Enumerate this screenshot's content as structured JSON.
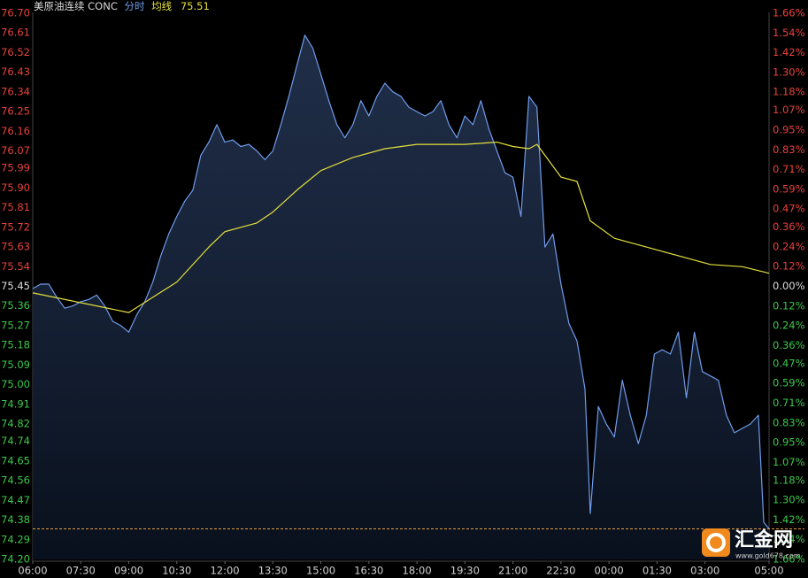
{
  "chart_data": {
    "type": "line",
    "title": "美原油连续 CONC",
    "avg_value": 75.51,
    "xlim": [
      "06:00",
      "05:00"
    ],
    "xticks": [
      "06:00",
      "07:30",
      "09:00",
      "10:30",
      "12:00",
      "13:30",
      "15:00",
      "16:30",
      "18:00",
      "19:30",
      "21:00",
      "22:30",
      "00:00",
      "01:30",
      "03:00",
      "05:00"
    ],
    "ylim": [
      74.2,
      76.7
    ],
    "yticks": [
      {
        "value": 76.7,
        "label": "76.70"
      },
      76.61,
      76.52,
      76.43,
      76.34,
      76.25,
      76.16,
      76.07,
      75.99,
      {
        "value": 75.9,
        "label": "75.90"
      },
      75.81,
      75.72,
      75.63,
      75.54,
      75.45,
      75.36,
      75.27,
      75.18,
      75.09,
      {
        "value": 75,
        "label": "75.00"
      },
      74.91,
      74.82,
      74.74,
      74.65,
      74.56,
      74.47,
      74.38,
      74.29,
      {
        "value": 74.2,
        "label": "74.20"
      }
    ],
    "y2lim": [
      -1.66,
      1.66
    ],
    "y2ticks": [
      {
        "value": 1.66,
        "label": "1.66%"
      },
      {
        "value": 1.54,
        "label": "1.54%"
      },
      {
        "value": 1.42,
        "label": "1.42%"
      },
      {
        "value": 1.3,
        "label": "1.30%"
      },
      {
        "value": 1.18,
        "label": "1.18%"
      },
      {
        "value": 1.07,
        "label": "1.07%"
      },
      {
        "value": 0.95,
        "label": "0.95%"
      },
      {
        "value": 0.83,
        "label": "0.83%"
      },
      {
        "value": 0.71,
        "label": "0.71%"
      },
      {
        "value": 0.59,
        "label": "0.59%"
      },
      {
        "value": 0.47,
        "label": "0.47%"
      },
      {
        "value": 0.36,
        "label": "0.36%"
      },
      {
        "value": 0.24,
        "label": "0.24%"
      },
      {
        "value": 0.12,
        "label": "0.12%"
      },
      {
        "value": 0,
        "label": "0.00%"
      },
      {
        "value": -0.12,
        "label": "0.12%"
      },
      {
        "value": -0.24,
        "label": "0.24%"
      },
      {
        "value": -0.36,
        "label": "0.36%"
      },
      {
        "value": -0.47,
        "label": "0.47%"
      },
      {
        "value": -0.59,
        "label": "0.59%"
      },
      {
        "value": -0.71,
        "label": "0.71%"
      },
      {
        "value": -0.83,
        "label": "0.83%"
      },
      {
        "value": -0.95,
        "label": "0.95%"
      },
      {
        "value": -1.07,
        "label": "1.07%"
      },
      {
        "value": -1.18,
        "label": "1.18%"
      },
      {
        "value": -1.3,
        "label": "1.30%"
      },
      {
        "value": -1.42,
        "label": "1.42%"
      },
      {
        "value": -1.54,
        "label": "1.54%"
      },
      {
        "value": -1.66,
        "label": "1.66%"
      }
    ],
    "series": [
      {
        "name": "分时",
        "color": "#6f9cec",
        "x": [
          "06:00",
          "06:15",
          "06:30",
          "06:45",
          "07:00",
          "07:15",
          "07:30",
          "07:45",
          "08:00",
          "08:15",
          "08:30",
          "08:45",
          "09:00",
          "09:15",
          "09:30",
          "09:45",
          "10:00",
          "10:15",
          "10:30",
          "10:45",
          "11:00",
          "11:15",
          "11:30",
          "11:45",
          "12:00",
          "12:15",
          "12:30",
          "12:45",
          "13:00",
          "13:15",
          "13:30",
          "13:45",
          "14:00",
          "14:15",
          "14:30",
          "14:45",
          "15:00",
          "15:15",
          "15:30",
          "15:45",
          "16:00",
          "16:15",
          "16:30",
          "16:45",
          "17:00",
          "17:15",
          "17:30",
          "17:45",
          "18:00",
          "18:15",
          "18:30",
          "18:45",
          "19:00",
          "19:15",
          "19:30",
          "19:45",
          "20:00",
          "20:15",
          "20:30",
          "20:45",
          "21:00",
          "21:15",
          "21:30",
          "21:45",
          "22:00",
          "22:15",
          "22:30",
          "22:45",
          "23:00",
          "23:15",
          "23:25",
          "23:40",
          "23:55",
          "00:10",
          "00:25",
          "00:40",
          "00:55",
          "01:10",
          "01:25",
          "01:40",
          "01:55",
          "02:10",
          "02:25",
          "02:40",
          "02:55",
          "03:10",
          "03:25",
          "03:40",
          "03:55",
          "04:10",
          "04:25",
          "04:40",
          "04:50",
          "05:00"
        ],
        "values": [
          75.44,
          75.46,
          75.46,
          75.4,
          75.35,
          75.36,
          75.38,
          75.39,
          75.41,
          75.36,
          75.29,
          75.27,
          75.24,
          75.32,
          75.38,
          75.47,
          75.59,
          75.69,
          75.77,
          75.84,
          75.89,
          76.05,
          76.11,
          76.19,
          76.11,
          76.12,
          76.09,
          76.1,
          76.07,
          76.03,
          76.07,
          76.19,
          76.32,
          76.46,
          76.6,
          76.54,
          76.42,
          76.3,
          76.19,
          76.13,
          76.19,
          76.3,
          76.23,
          76.32,
          76.38,
          76.34,
          76.32,
          76.27,
          76.25,
          76.23,
          76.25,
          76.3,
          76.19,
          76.13,
          76.23,
          76.19,
          76.3,
          76.17,
          76.07,
          75.97,
          75.95,
          75.77,
          76.32,
          76.27,
          75.63,
          75.69,
          75.46,
          75.28,
          75.2,
          74.98,
          74.41,
          74.9,
          74.82,
          74.76,
          75.02,
          74.86,
          74.73,
          74.86,
          75.14,
          75.16,
          75.14,
          75.24,
          74.94,
          75.24,
          75.06,
          75.04,
          75.02,
          74.86,
          74.78,
          74.8,
          74.82,
          74.86,
          74.37,
          74.34
        ]
      },
      {
        "name": "均线",
        "color": "#e4e03c",
        "x": [
          "06:00",
          "09:00",
          "10:30",
          "11:30",
          "12:00",
          "13:00",
          "13:30",
          "14:15",
          "15:00",
          "16:00",
          "17:00",
          "18:00",
          "19:30",
          "20:30",
          "21:00",
          "21:30",
          "21:45",
          "22:30",
          "23:00",
          "23:25",
          "00:10",
          "01:10",
          "02:10",
          "03:10",
          "04:10",
          "05:00"
        ],
        "values": [
          75.42,
          75.33,
          75.47,
          75.63,
          75.7,
          75.74,
          75.79,
          75.89,
          75.98,
          76.04,
          76.08,
          76.1,
          76.1,
          76.11,
          76.09,
          76.08,
          76.1,
          75.95,
          75.93,
          75.75,
          75.67,
          75.63,
          75.59,
          75.55,
          75.54,
          75.51
        ]
      }
    ]
  },
  "watermark": {
    "brand": "汇金网",
    "url": "www.gold678.com"
  }
}
